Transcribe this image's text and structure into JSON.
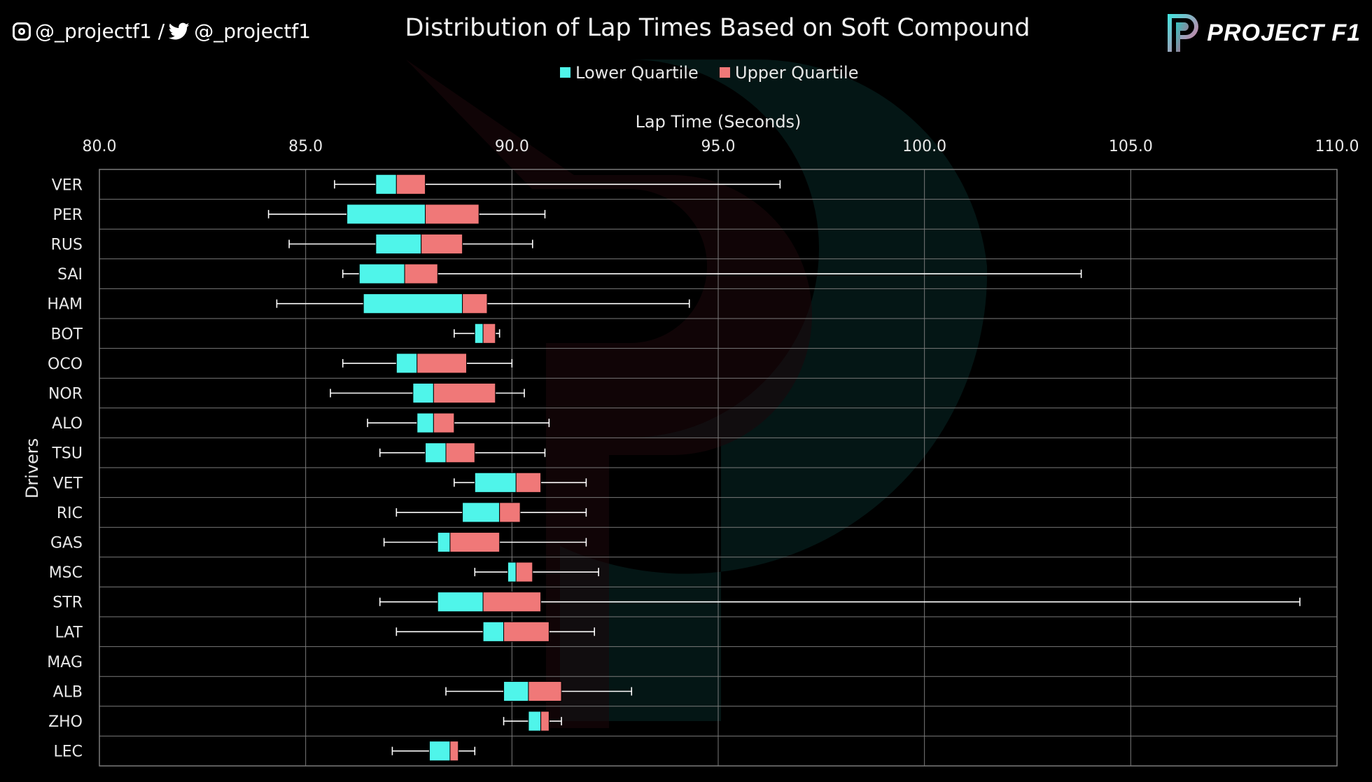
{
  "header": {
    "social_handles": "@_projectf1 / @_projectf1",
    "brand": "PROJECT F1"
  },
  "colors": {
    "lower_quartile": "#4ff5ea",
    "upper_quartile": "#f07878",
    "grid": "#7a7a7a",
    "whisker": "#ffffff"
  },
  "chart_data": {
    "type": "box",
    "title": "Distribution of Lap Times Based on Soft Compound",
    "xlabel": "Lap Time (Seconds)",
    "ylabel": "Drivers",
    "xlim": [
      80,
      110
    ],
    "xticks": [
      "80.0",
      "85.0",
      "90.0",
      "95.0",
      "100.0",
      "105.0",
      "110.0"
    ],
    "grid": true,
    "legend_position": "top-center",
    "legend": [
      "Lower Quartile",
      "Upper Quartile"
    ],
    "series": [
      {
        "driver": "VER",
        "min": 85.7,
        "q1": 86.7,
        "median": 87.2,
        "q3": 87.9,
        "max": 96.5
      },
      {
        "driver": "PER",
        "min": 84.1,
        "q1": 86.0,
        "median": 87.9,
        "q3": 89.2,
        "max": 90.8
      },
      {
        "driver": "RUS",
        "min": 84.6,
        "q1": 86.7,
        "median": 87.8,
        "q3": 88.8,
        "max": 90.5
      },
      {
        "driver": "SAI",
        "min": 85.9,
        "q1": 86.3,
        "median": 87.4,
        "q3": 88.2,
        "max": 103.8
      },
      {
        "driver": "HAM",
        "min": 84.3,
        "q1": 86.4,
        "median": 88.8,
        "q3": 89.4,
        "max": 94.3
      },
      {
        "driver": "BOT",
        "min": 88.6,
        "q1": 89.1,
        "median": 89.3,
        "q3": 89.6,
        "max": 89.7
      },
      {
        "driver": "OCO",
        "min": 85.9,
        "q1": 87.2,
        "median": 87.7,
        "q3": 88.9,
        "max": 90.0
      },
      {
        "driver": "NOR",
        "min": 85.6,
        "q1": 87.6,
        "median": 88.1,
        "q3": 89.6,
        "max": 90.3
      },
      {
        "driver": "ALO",
        "min": 86.5,
        "q1": 87.7,
        "median": 88.1,
        "q3": 88.6,
        "max": 90.9
      },
      {
        "driver": "TSU",
        "min": 86.8,
        "q1": 87.9,
        "median": 88.4,
        "q3": 89.1,
        "max": 90.8
      },
      {
        "driver": "VET",
        "min": 88.6,
        "q1": 89.1,
        "median": 90.1,
        "q3": 90.7,
        "max": 91.8
      },
      {
        "driver": "RIC",
        "min": 87.2,
        "q1": 88.8,
        "median": 89.7,
        "q3": 90.2,
        "max": 91.8
      },
      {
        "driver": "GAS",
        "min": 86.9,
        "q1": 88.2,
        "median": 88.5,
        "q3": 89.7,
        "max": 91.8
      },
      {
        "driver": "MSC",
        "min": 89.1,
        "q1": 89.9,
        "median": 90.1,
        "q3": 90.5,
        "max": 92.1
      },
      {
        "driver": "STR",
        "min": 86.8,
        "q1": 88.2,
        "median": 89.3,
        "q3": 90.7,
        "max": 109.1
      },
      {
        "driver": "LAT",
        "min": 87.2,
        "q1": 89.3,
        "median": 89.8,
        "q3": 90.9,
        "max": 92.0
      },
      {
        "driver": "MAG"
      },
      {
        "driver": "ALB",
        "min": 88.4,
        "q1": 89.8,
        "median": 90.4,
        "q3": 91.2,
        "max": 92.9
      },
      {
        "driver": "ZHO",
        "min": 89.8,
        "q1": 90.4,
        "median": 90.7,
        "q3": 90.9,
        "max": 91.2
      },
      {
        "driver": "LEC",
        "min": 87.1,
        "q1": 88.0,
        "median": 88.5,
        "q3": 88.7,
        "max": 89.1
      }
    ]
  }
}
